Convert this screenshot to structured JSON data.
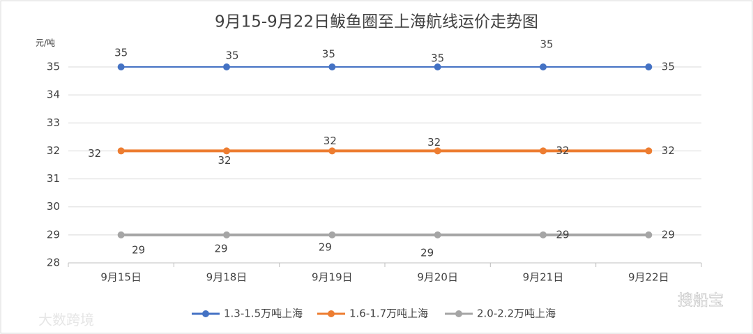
{
  "chart_data": {
    "type": "line",
    "title": "9月15-9月22日鲅鱼圈至上海航线运价走势图",
    "y_label": "元/吨",
    "categories": [
      "9月15日",
      "9月18日",
      "9月19日",
      "9月20日",
      "9月21日",
      "9月22日"
    ],
    "series": [
      {
        "name": "1.3-1.5万吨上海",
        "color": "#4472c4",
        "values": [
          35,
          35,
          35,
          35,
          35,
          35
        ]
      },
      {
        "name": "1.6-1.7万吨上海",
        "color": "#ed7d31",
        "values": [
          32,
          32,
          32,
          32,
          32,
          32
        ]
      },
      {
        "name": "2.0-2.2万吨上海",
        "color": "#a5a5a5",
        "values": [
          29,
          29,
          29,
          29,
          29,
          29
        ]
      }
    ],
    "ylim": [
      28,
      35
    ],
    "yticks": [
      28,
      29,
      30,
      31,
      32,
      33,
      34,
      35
    ],
    "grid": true,
    "legend": "bottom",
    "annotations": [
      "大数跨境",
      "搜船宝"
    ]
  }
}
